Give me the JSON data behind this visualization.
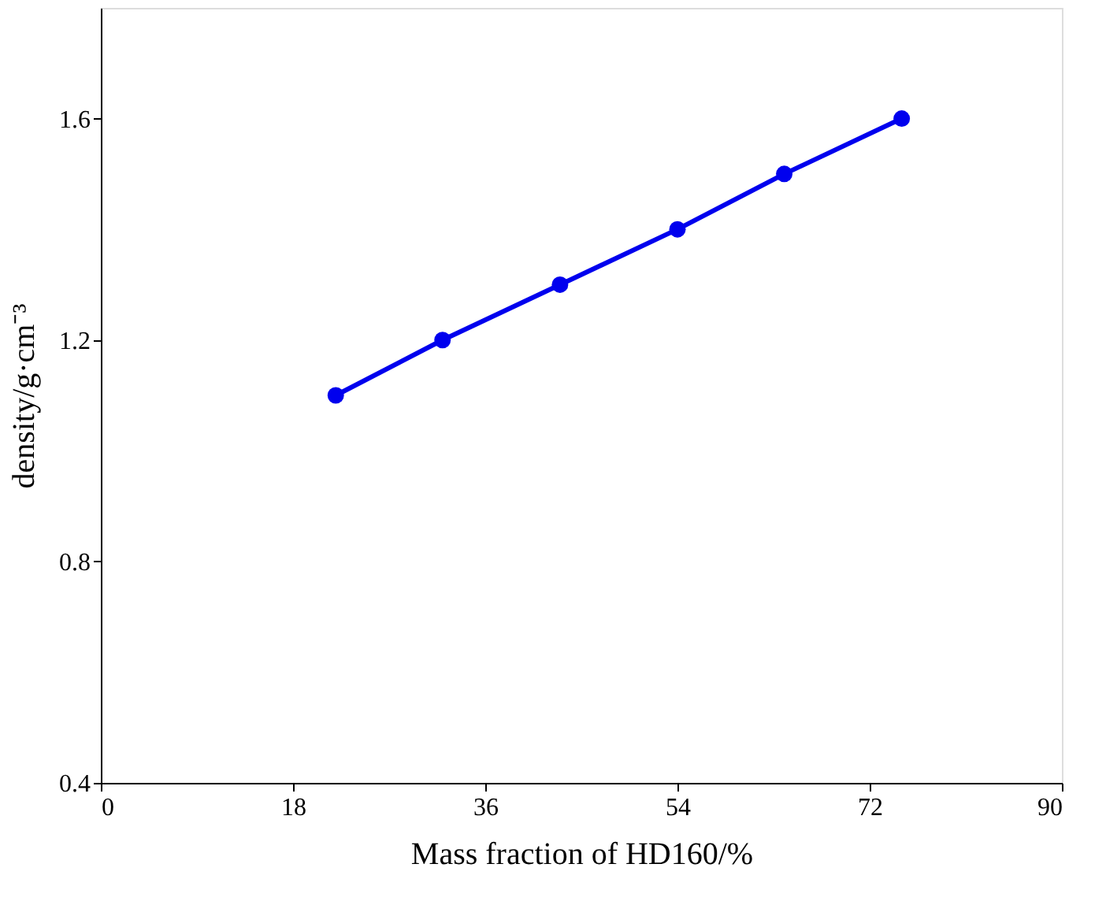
{
  "chart_data": {
    "type": "line",
    "xlabel": "Mass fraction of HD160/%",
    "ylabel": "density/g·cm⁻³",
    "x": [
      22,
      32,
      43,
      54,
      64,
      75
    ],
    "series": [
      {
        "color": "#0000ee",
        "values": [
          1.1,
          1.2,
          1.3,
          1.4,
          1.5,
          1.6
        ]
      }
    ],
    "xlim": [
      0,
      90
    ],
    "xticks": [
      0,
      18,
      36,
      54,
      72,
      90
    ],
    "ylim": [
      0.4,
      1.8
    ],
    "yticks": [
      0.4,
      0.8,
      1.2,
      1.6
    ],
    "marker": "circle",
    "line_style": "solid",
    "grid": false,
    "legend": false
  }
}
